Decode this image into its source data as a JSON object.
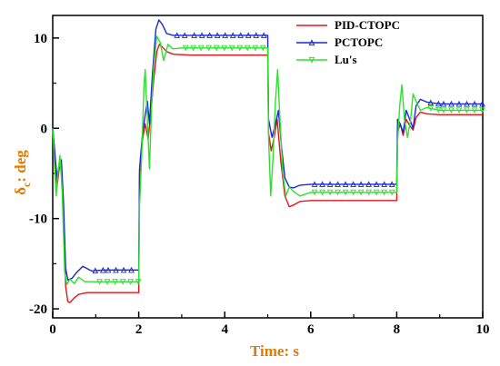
{
  "chart_data": {
    "type": "line",
    "title": "",
    "xlabel": "Time: s",
    "ylabel": "δc: deg",
    "ylabel_main": "δ",
    "ylabel_sub": "c",
    "ylabel_rest": ": deg",
    "xlim": [
      0,
      10
    ],
    "ylim": [
      -21,
      12.5
    ],
    "xticks": [
      0,
      2,
      4,
      6,
      8,
      10
    ],
    "yticks": [
      -20,
      -10,
      0,
      10
    ],
    "legend_position": "top-right",
    "series": [
      {
        "name": "PID-CTOPC",
        "color": "#e8141b",
        "marker": "none",
        "points": [
          [
            0,
            0
          ],
          [
            0.05,
            -3
          ],
          [
            0.1,
            -6.5
          ],
          [
            0.15,
            -4.5
          ],
          [
            0.2,
            -4
          ],
          [
            0.25,
            -9
          ],
          [
            0.3,
            -17.5
          ],
          [
            0.35,
            -19.2
          ],
          [
            0.4,
            -19.3
          ],
          [
            0.5,
            -18.8
          ],
          [
            0.6,
            -18.4
          ],
          [
            0.8,
            -18.2
          ],
          [
            1.2,
            -18.2
          ],
          [
            2.0,
            -18.2
          ],
          [
            2.02,
            -5
          ],
          [
            2.08,
            -1.5
          ],
          [
            2.15,
            0.5
          ],
          [
            2.22,
            -1.2
          ],
          [
            2.28,
            1.5
          ],
          [
            2.35,
            5.5
          ],
          [
            2.42,
            8.5
          ],
          [
            2.48,
            9.3
          ],
          [
            2.55,
            9.0
          ],
          [
            2.65,
            8.5
          ],
          [
            2.8,
            8.2
          ],
          [
            3.2,
            8.1
          ],
          [
            5.0,
            8.1
          ],
          [
            5.02,
            -0.5
          ],
          [
            5.08,
            -2.5
          ],
          [
            5.15,
            -1.0
          ],
          [
            5.22,
            1.0
          ],
          [
            5.3,
            -3.5
          ],
          [
            5.4,
            -7.5
          ],
          [
            5.5,
            -8.7
          ],
          [
            5.6,
            -8.5
          ],
          [
            5.75,
            -8.1
          ],
          [
            6.0,
            -8.0
          ],
          [
            8.0,
            -8.0
          ],
          [
            8.02,
            -0.5
          ],
          [
            8.08,
            0.5
          ],
          [
            8.15,
            -0.8
          ],
          [
            8.22,
            1.0
          ],
          [
            8.3,
            0.3
          ],
          [
            8.38,
            -0.2
          ],
          [
            8.45,
            1.2
          ],
          [
            8.55,
            1.8
          ],
          [
            8.7,
            1.6
          ],
          [
            9.0,
            1.5
          ],
          [
            10.0,
            1.5
          ]
        ]
      },
      {
        "name": "PCTOPC",
        "color": "#1a28d0",
        "marker": "triangle",
        "points": [
          [
            0,
            0
          ],
          [
            0.05,
            -2.8
          ],
          [
            0.1,
            -5.5
          ],
          [
            0.15,
            -4.0
          ],
          [
            0.2,
            -3.5
          ],
          [
            0.25,
            -8.0
          ],
          [
            0.3,
            -15.5
          ],
          [
            0.35,
            -16.8
          ],
          [
            0.45,
            -16.6
          ],
          [
            0.55,
            -16.0
          ],
          [
            0.7,
            -15.3
          ],
          [
            0.9,
            -15.8
          ],
          [
            1.2,
            -15.7
          ],
          [
            2.0,
            -15.7
          ],
          [
            2.02,
            -4.5
          ],
          [
            2.08,
            -1.0
          ],
          [
            2.15,
            1.5
          ],
          [
            2.2,
            3.0
          ],
          [
            2.25,
            0.5
          ],
          [
            2.32,
            6.0
          ],
          [
            2.4,
            11.0
          ],
          [
            2.47,
            12.0
          ],
          [
            2.55,
            11.5
          ],
          [
            2.65,
            10.5
          ],
          [
            2.8,
            10.3
          ],
          [
            3.2,
            10.3
          ],
          [
            5.0,
            10.3
          ],
          [
            5.02,
            1.0
          ],
          [
            5.1,
            -1.0
          ],
          [
            5.18,
            0.5
          ],
          [
            5.25,
            2.0
          ],
          [
            5.32,
            -2.0
          ],
          [
            5.4,
            -5.5
          ],
          [
            5.5,
            -6.5
          ],
          [
            5.6,
            -6.6
          ],
          [
            5.75,
            -6.3
          ],
          [
            6.0,
            -6.2
          ],
          [
            8.0,
            -6.2
          ],
          [
            8.02,
            1.0
          ],
          [
            8.08,
            0.5
          ],
          [
            8.15,
            -0.5
          ],
          [
            8.22,
            2.0
          ],
          [
            8.3,
            1.0
          ],
          [
            8.38,
            0.0
          ],
          [
            8.45,
            2.5
          ],
          [
            8.55,
            3.2
          ],
          [
            8.7,
            2.9
          ],
          [
            9.0,
            2.7
          ],
          [
            10.0,
            2.7
          ]
        ]
      },
      {
        "name": "Lu's",
        "color": "#2ee02e",
        "marker": "triangle-down",
        "points": [
          [
            0,
            0
          ],
          [
            0.04,
            -4.0
          ],
          [
            0.08,
            -7.5
          ],
          [
            0.12,
            -5.0
          ],
          [
            0.17,
            -3.0
          ],
          [
            0.22,
            -7.0
          ],
          [
            0.28,
            -16.0
          ],
          [
            0.33,
            -17.3
          ],
          [
            0.4,
            -16.7
          ],
          [
            0.5,
            -17.2
          ],
          [
            0.6,
            -16.5
          ],
          [
            0.75,
            -17.0
          ],
          [
            1.0,
            -17.0
          ],
          [
            2.0,
            -17.0
          ],
          [
            2.02,
            -8.5
          ],
          [
            2.07,
            -3.0
          ],
          [
            2.12,
            4.5
          ],
          [
            2.15,
            6.5
          ],
          [
            2.2,
            1.0
          ],
          [
            2.25,
            -4.5
          ],
          [
            2.3,
            2.5
          ],
          [
            2.35,
            7.0
          ],
          [
            2.42,
            10.2
          ],
          [
            2.5,
            9.5
          ],
          [
            2.58,
            7.5
          ],
          [
            2.68,
            9.3
          ],
          [
            2.8,
            8.8
          ],
          [
            3.0,
            8.9
          ],
          [
            5.0,
            8.9
          ],
          [
            5.02,
            -1.0
          ],
          [
            5.07,
            -7.5
          ],
          [
            5.12,
            -3.5
          ],
          [
            5.18,
            3.0
          ],
          [
            5.23,
            6.5
          ],
          [
            5.28,
            1.5
          ],
          [
            5.35,
            -5.0
          ],
          [
            5.42,
            -7.5
          ],
          [
            5.5,
            -6.5
          ],
          [
            5.6,
            -7.0
          ],
          [
            5.75,
            -7.5
          ],
          [
            6.0,
            -7.1
          ],
          [
            8.0,
            -7.1
          ],
          [
            8.02,
            -1.5
          ],
          [
            8.07,
            2.5
          ],
          [
            8.12,
            4.8
          ],
          [
            8.18,
            1.0
          ],
          [
            8.25,
            -1.0
          ],
          [
            8.32,
            0.8
          ],
          [
            8.38,
            3.8
          ],
          [
            8.45,
            3.0
          ],
          [
            8.55,
            2.0
          ],
          [
            8.7,
            2.3
          ],
          [
            9.0,
            2.0
          ],
          [
            10.0,
            2.0
          ]
        ]
      }
    ]
  }
}
